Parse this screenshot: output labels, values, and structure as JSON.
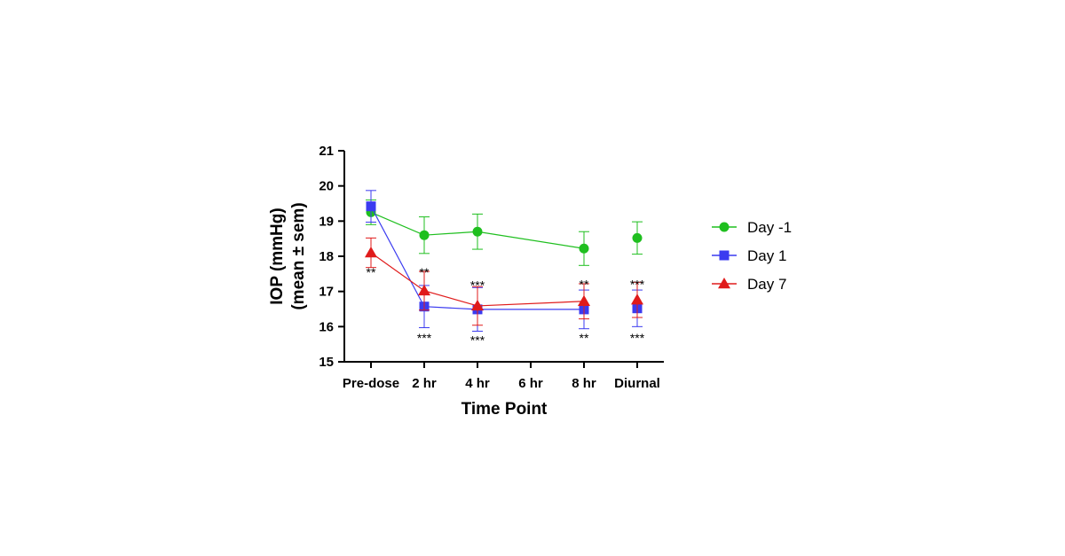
{
  "chart_data": {
    "type": "line",
    "title": "",
    "xlabel": "Time Point",
    "ylabel_lines": [
      "IOP (mmHg)",
      "(mean ± sem)"
    ],
    "categories": [
      "Pre-dose",
      "2 hr",
      "4 hr",
      "6 hr",
      "8 hr",
      "Diurnal"
    ],
    "ylim": [
      15,
      21
    ],
    "yticks": [
      "15",
      "16",
      "17",
      "18",
      "19",
      "20",
      "21"
    ],
    "legend_position": "right",
    "series": [
      {
        "name": "Day -1",
        "color": "#1fbf1f",
        "marker": "circle",
        "connected": [
          true,
          true,
          true,
          false,
          true,
          false
        ],
        "values": [
          19.25,
          18.6,
          18.7,
          null,
          18.22,
          18.52
        ],
        "errors": [
          0.35,
          0.52,
          0.5,
          null,
          0.48,
          0.46
        ]
      },
      {
        "name": "Day 1",
        "color": "#3b3bf0",
        "marker": "square",
        "connected": [
          true,
          true,
          true,
          false,
          true,
          false
        ],
        "values": [
          19.42,
          16.57,
          16.49,
          null,
          16.49,
          16.52
        ],
        "errors": [
          0.45,
          0.6,
          0.62,
          null,
          0.55,
          0.52
        ]
      },
      {
        "name": "Day 7",
        "color": "#e01b1b",
        "marker": "triangle",
        "connected": [
          true,
          true,
          true,
          false,
          true,
          false
        ],
        "values": [
          18.1,
          17.02,
          16.59,
          null,
          16.72,
          16.76
        ],
        "errors": [
          0.42,
          0.55,
          0.55,
          null,
          0.5,
          0.5
        ]
      }
    ],
    "annotations": [
      {
        "category": "Pre-dose",
        "value": 17.55,
        "text": "**"
      },
      {
        "category": "2 hr",
        "value": 17.55,
        "text": "**"
      },
      {
        "category": "2 hr",
        "value": 15.68,
        "text": "***"
      },
      {
        "category": "4 hr",
        "value": 17.18,
        "text": "***"
      },
      {
        "category": "4 hr",
        "value": 15.62,
        "text": "***"
      },
      {
        "category": "8 hr",
        "value": 17.2,
        "text": "**"
      },
      {
        "category": "8 hr",
        "value": 15.68,
        "text": "**"
      },
      {
        "category": "Diurnal",
        "value": 17.2,
        "text": "***"
      },
      {
        "category": "Diurnal",
        "value": 15.68,
        "text": "***"
      }
    ]
  }
}
